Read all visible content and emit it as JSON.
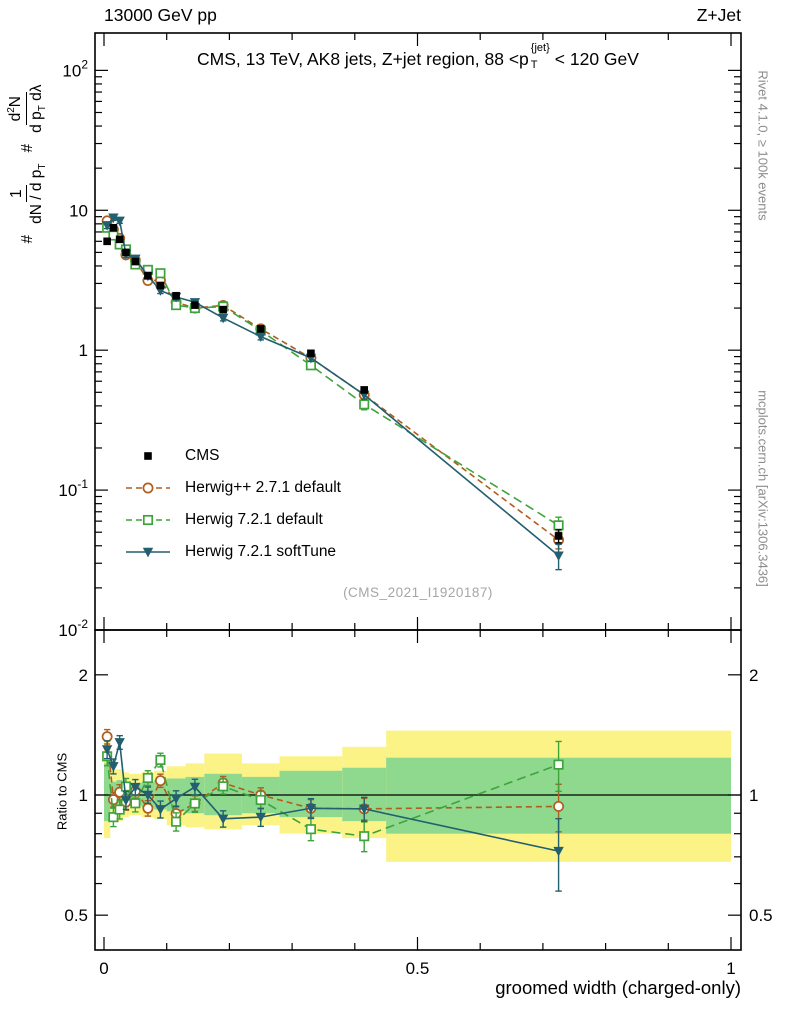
{
  "header": {
    "left": "13000 GeV pp",
    "right": "Z+Jet"
  },
  "title": {
    "pre": "CMS, 13 TeV, AK8 jets, Z+jet region, 88 <p",
    "sup": "{jet}",
    "sub": "T",
    "post": "< 120 GeV"
  },
  "watermark": "(CMS_2021_I1920187)",
  "side_notes": {
    "right_top": "Rivet 4.1.0, ≥ 100k events",
    "right_bottom": "mcplots.cern.ch [arXiv:1306.3436]"
  },
  "axes": {
    "x_title": "groomed width (charged-only)",
    "y_ratio_title": "Ratio to CMS",
    "y_main": {
      "hash": "#",
      "frac1_num": "1",
      "frac1_den": "dN / d p",
      "sub_T": "T",
      "frac2_num_pre": "d",
      "frac2_num_sup": "2",
      "frac2_num_post": "N",
      "frac2_den_pre": "d p",
      "frac2_den_post": " dλ"
    }
  },
  "legend": {
    "items": [
      {
        "label": "CMS",
        "marker": "square-filled",
        "color": "#000000",
        "line": "none"
      },
      {
        "label": "Herwig++ 2.7.1 default",
        "marker": "circle-open",
        "color": "#b05e1f",
        "line": "dashed"
      },
      {
        "label": "Herwig 7.2.1 default",
        "marker": "square-open",
        "color": "#3fa33b",
        "line": "dashed"
      },
      {
        "label": "Herwig 7.2.1 softTune",
        "marker": "triangle-down-filled",
        "color": "#225f6f",
        "line": "solid"
      }
    ]
  },
  "chart_data": {
    "type": "line",
    "title": "CMS, 13 TeV, AK8 jets, Z+jet region, 88 <pT^{jet} < 120 GeV",
    "xlabel": "groomed width (charged-only)",
    "ylabel_main": "# 1/(dN/dpT) # d²N/(dpT dλ)",
    "ylabel_ratio": "Ratio to CMS",
    "x_scale": "linear",
    "y_scale": "log",
    "xlim": [
      -0.0144,
      1.016
    ],
    "ylim_main": [
      0.01,
      185
    ],
    "ylim_ratio": [
      0.409,
      2.59
    ],
    "x_ticks_major": [
      0,
      0.5,
      1
    ],
    "x_tick_labels": [
      "0",
      "0.5",
      "1"
    ],
    "x_ticks_minor": [
      0.1,
      0.2,
      0.3,
      0.4,
      0.6,
      0.7,
      0.8,
      0.9
    ],
    "y_ticks_main": [
      {
        "v": 100,
        "base": "10",
        "exp": "2"
      },
      {
        "v": 10,
        "base": "10"
      },
      {
        "v": 1,
        "base": "1"
      },
      {
        "v": 0.1,
        "base": "10",
        "exp": "-1"
      },
      {
        "v": 0.01,
        "base": "10",
        "exp": "-2"
      }
    ],
    "y_ticks_ratio": [
      {
        "v": 2,
        "label": "2"
      },
      {
        "v": 1,
        "label": "1"
      },
      {
        "v": 0.5,
        "label": "0.5"
      }
    ],
    "y_ratio_minor": [
      0.6,
      0.7,
      0.8,
      0.9
    ],
    "x": [
      0.005,
      0.015,
      0.025,
      0.035,
      0.05,
      0.07,
      0.09,
      0.115,
      0.145,
      0.19,
      0.25,
      0.33,
      0.415,
      0.725
    ],
    "bin_edges": [
      0,
      0.01,
      0.02,
      0.03,
      0.04,
      0.06,
      0.08,
      0.1,
      0.13,
      0.16,
      0.22,
      0.28,
      0.38,
      0.45,
      1.0
    ],
    "series": [
      {
        "name": "CMS",
        "marker": "square-filled",
        "color": "#000000",
        "line": "none",
        "values": [
          6.0,
          7.5,
          6.2,
          5.0,
          4.3,
          3.4,
          2.9,
          2.45,
          2.1,
          1.95,
          1.42,
          0.95,
          0.52,
          0.047
        ],
        "errors": [
          0.25,
          0.28,
          0.25,
          0.2,
          0.15,
          0.12,
          0.1,
          0.09,
          0.08,
          0.07,
          0.05,
          0.035,
          0.022,
          0.005
        ]
      },
      {
        "name": "Herwig++ 2.7.1 default",
        "marker": "circle-open",
        "color": "#b05e1f",
        "line": "dashed",
        "dash": "6 4",
        "values": [
          8.4,
          7.3,
          6.3,
          4.8,
          4.4,
          3.15,
          3.15,
          2.2,
          2.0,
          2.09,
          1.42,
          0.88,
          0.48,
          0.044
        ],
        "errors": [
          0.35,
          0.3,
          0.28,
          0.22,
          0.18,
          0.14,
          0.12,
          0.1,
          0.09,
          0.08,
          0.06,
          0.045,
          0.03,
          0.006
        ]
      },
      {
        "name": "Herwig 7.2.1 default",
        "marker": "square-open",
        "color": "#3fa33b",
        "line": "dashed",
        "dash": "9 5",
        "values": [
          7.5,
          6.6,
          5.7,
          5.25,
          4.1,
          3.75,
          3.55,
          2.1,
          2.0,
          2.05,
          1.38,
          0.78,
          0.41,
          0.056
        ],
        "errors": [
          0.4,
          0.35,
          0.3,
          0.25,
          0.2,
          0.16,
          0.14,
          0.11,
          0.1,
          0.09,
          0.07,
          0.05,
          0.035,
          0.008
        ]
      },
      {
        "name": "Herwig 7.2.1 softTune",
        "marker": "triangle-down-filled",
        "color": "#225f6f",
        "line": "solid",
        "values": [
          7.8,
          8.85,
          8.4,
          4.85,
          4.5,
          3.4,
          2.67,
          2.4,
          2.2,
          1.7,
          1.25,
          0.88,
          0.48,
          0.034
        ],
        "errors": [
          0.4,
          0.38,
          0.33,
          0.25,
          0.2,
          0.16,
          0.13,
          0.11,
          0.1,
          0.08,
          0.065,
          0.05,
          0.033,
          0.007
        ]
      }
    ],
    "ratio_bands": {
      "yellow": {
        "color": "#fbf386",
        "lo": [
          0.78,
          0.87,
          0.86,
          0.88,
          0.89,
          0.88,
          0.87,
          0.84,
          0.83,
          0.82,
          0.84,
          0.8,
          0.78,
          0.68
        ],
        "hi": [
          1.42,
          1.16,
          1.16,
          1.14,
          1.13,
          1.14,
          1.15,
          1.18,
          1.2,
          1.27,
          1.2,
          1.25,
          1.32,
          1.45
        ]
      },
      "green": {
        "color": "#8ed98e",
        "lo": [
          0.86,
          0.93,
          0.92,
          0.93,
          0.94,
          0.93,
          0.92,
          0.91,
          0.9,
          0.89,
          0.9,
          0.88,
          0.86,
          0.8
        ],
        "hi": [
          1.2,
          1.08,
          1.09,
          1.08,
          1.07,
          1.08,
          1.09,
          1.1,
          1.11,
          1.13,
          1.11,
          1.15,
          1.17,
          1.24
        ]
      }
    },
    "legend_position": "middle-left",
    "grid": false
  }
}
